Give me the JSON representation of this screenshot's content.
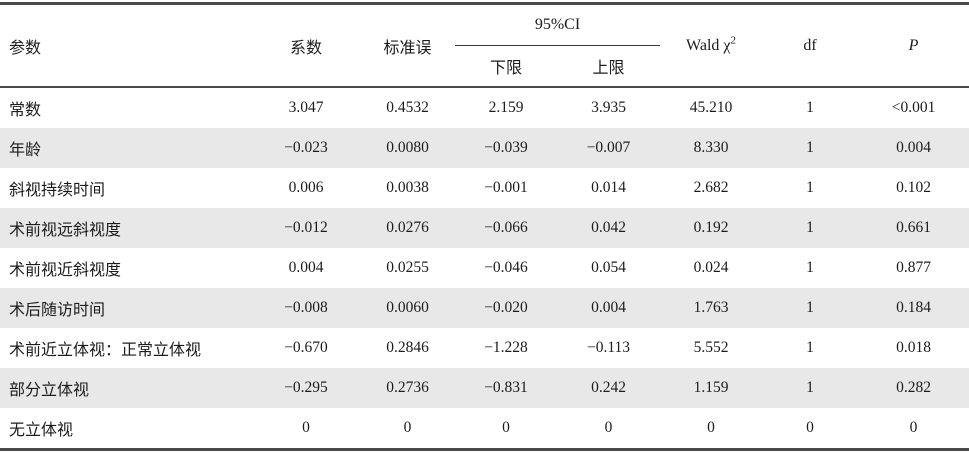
{
  "table": {
    "header": {
      "param": "参数",
      "coef": "系数",
      "se": "标准误",
      "ci": "95%CI",
      "ci_lower": "下限",
      "ci_upper": "上限",
      "wald_prefix": "Wald χ",
      "wald_sup": "2",
      "df": "df",
      "p": "P"
    },
    "rows": [
      {
        "param": "常数",
        "coef": "3.047",
        "se": "0.4532",
        "lower": "2.159",
        "upper": "3.935",
        "wald": "45.210",
        "df": "1",
        "p": "<0.001"
      },
      {
        "param": "年龄",
        "coef": "−0.023",
        "se": "0.0080",
        "lower": "−0.039",
        "upper": "−0.007",
        "wald": "8.330",
        "df": "1",
        "p": "0.004"
      },
      {
        "param": "斜视持续时间",
        "coef": "0.006",
        "se": "0.0038",
        "lower": "−0.001",
        "upper": "0.014",
        "wald": "2.682",
        "df": "1",
        "p": "0.102"
      },
      {
        "param": "术前视远斜视度",
        "coef": "−0.012",
        "se": "0.0276",
        "lower": "−0.066",
        "upper": "0.042",
        "wald": "0.192",
        "df": "1",
        "p": "0.661"
      },
      {
        "param": "术前视近斜视度",
        "coef": "0.004",
        "se": "0.0255",
        "lower": "−0.046",
        "upper": "0.054",
        "wald": "0.024",
        "df": "1",
        "p": "0.877"
      },
      {
        "param": "术后随访时间",
        "coef": "−0.008",
        "se": "0.0060",
        "lower": "−0.020",
        "upper": "0.004",
        "wald": "1.763",
        "df": "1",
        "p": "0.184"
      },
      {
        "param": "术前近立体视：正常立体视",
        "coef": "−0.670",
        "se": "0.2846",
        "lower": "−1.228",
        "upper": "−0.113",
        "wald": "5.552",
        "df": "1",
        "p": "0.018"
      },
      {
        "param": "部分立体视",
        "coef": "−0.295",
        "se": "0.2736",
        "lower": "−0.831",
        "upper": "0.242",
        "wald": "1.159",
        "df": "1",
        "p": "0.282"
      },
      {
        "param": "无立体视",
        "coef": "0",
        "se": "0",
        "lower": "0",
        "upper": "0",
        "wald": "0",
        "df": "0",
        "p": "0"
      }
    ],
    "colors": {
      "stripe": "#e8e8e8",
      "rule": "#4a4a4a",
      "text": "#1c1c1c"
    }
  }
}
